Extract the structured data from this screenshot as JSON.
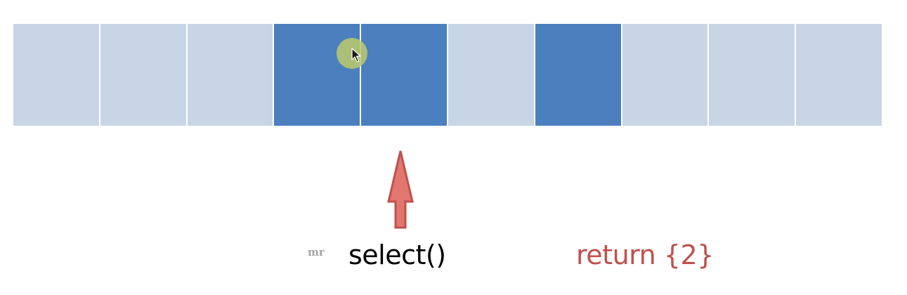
{
  "cells": [
    {
      "selected": false
    },
    {
      "selected": false
    },
    {
      "selected": false
    },
    {
      "selected": true
    },
    {
      "selected": true
    },
    {
      "selected": false
    },
    {
      "selected": true
    },
    {
      "selected": false
    },
    {
      "selected": false
    },
    {
      "selected": false
    }
  ],
  "colors": {
    "cell_default": "#c8d5e6",
    "cell_selected": "#4b7fbd",
    "arrow_fill": "#e1776e",
    "arrow_stroke": "#c0504d",
    "return_text": "#c0504d"
  },
  "icons": {
    "cursor": "mouse-pointer-icon",
    "arrow": "up-arrow-icon"
  },
  "labels": {
    "watermark": "mr",
    "call": "select()",
    "result": "return {2}"
  }
}
